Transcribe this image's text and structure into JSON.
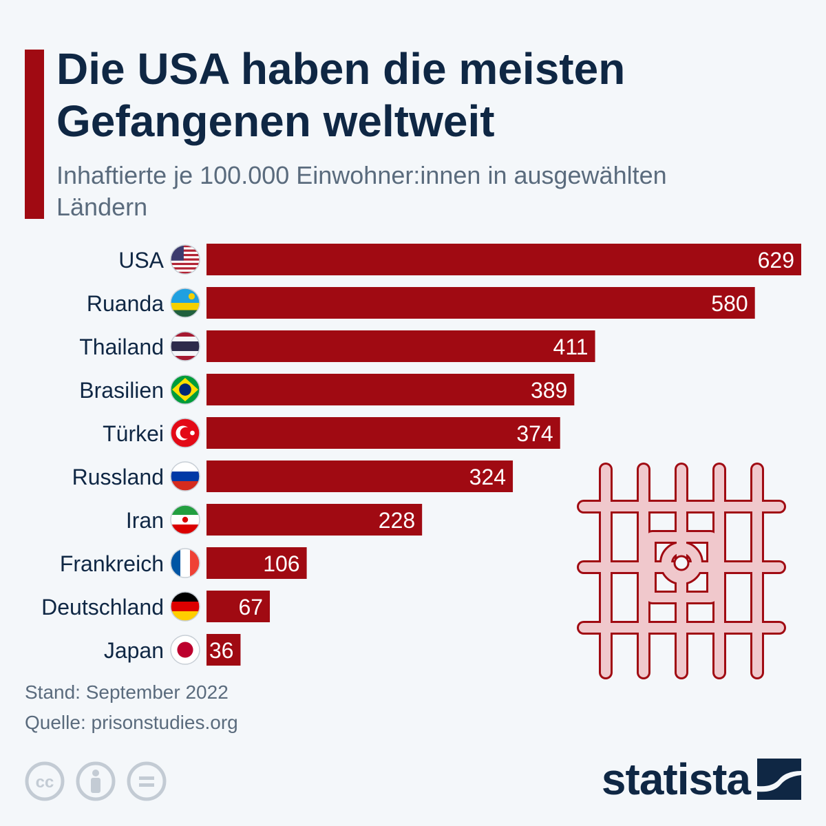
{
  "title": "Die USA haben die meisten Gefangenen weltweit",
  "subtitle": "Inhaftierte je 100.000 Einwohner:innen in ausgewählten Ländern",
  "footer": {
    "note": "Stand: September 2022",
    "source": "Quelle: prisonstudies.org"
  },
  "brand": {
    "name": "statista",
    "color": "#0f2744"
  },
  "colors": {
    "bar": "#a00a12",
    "text": "#0f2744",
    "muted": "#5a6b7d",
    "illustration": "#d99aa0"
  },
  "icons": [
    "cc-icon",
    "attribution-icon",
    "no-derivatives-icon",
    "prison-bars-icon",
    "statista-logo-icon"
  ],
  "chart_data": {
    "type": "bar",
    "orientation": "horizontal",
    "categories": [
      "USA",
      "Ruanda",
      "Thailand",
      "Brasilien",
      "Türkei",
      "Russland",
      "Iran",
      "Frankreich",
      "Deutschland",
      "Japan"
    ],
    "values": [
      629,
      580,
      411,
      389,
      374,
      324,
      228,
      106,
      67,
      36
    ],
    "flags": [
      "us",
      "rw",
      "th",
      "br",
      "tr",
      "ru",
      "ir",
      "fr",
      "de",
      "jp"
    ],
    "xlim": [
      0,
      629
    ],
    "grid": false,
    "legend": "none"
  }
}
